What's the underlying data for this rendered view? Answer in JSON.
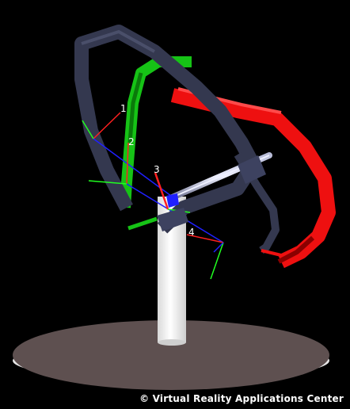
{
  "scene": {
    "background_color": "#000000",
    "ring_colors": {
      "outer": "#34384f",
      "middle": "#16c316",
      "inner": "#ee1010"
    },
    "pedestal_color": "#f2f2f2",
    "base_color": "#5e5050",
    "axis_colors": {
      "x": "#ff2020",
      "y": "#20ff20",
      "z": "#2020ff"
    },
    "axis_labels": [
      "1",
      "2",
      "3",
      "4"
    ]
  },
  "credit_text": "© Virtual Reality Applications Center"
}
